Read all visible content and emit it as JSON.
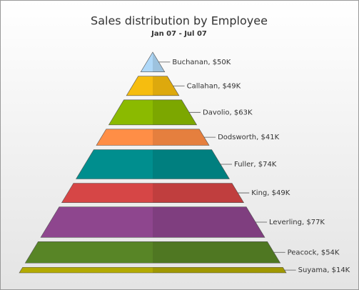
{
  "chart_data": {
    "type": "pyramid",
    "title": "Sales distribution by Employee",
    "subtitle": "Jan 07 - Jul 07",
    "values": [
      50,
      49,
      63,
      41,
      74,
      49,
      77,
      54,
      14
    ],
    "value_labels": [
      "Buchanan, $50K",
      "Callahan, $49K",
      "Davolio, $63K",
      "Dodsworth, $41K",
      "Fuller, $74K",
      "King, $49K",
      "Leverling, $77K",
      "Peacock, $54K",
      "Suyama, $14K"
    ],
    "colors": [
      "#afd8f8",
      "#f6bd0f",
      "#8bba00",
      "#ff8e46",
      "#008e8e",
      "#d64646",
      "#8e468e",
      "#588526",
      "#b3aa00"
    ]
  }
}
